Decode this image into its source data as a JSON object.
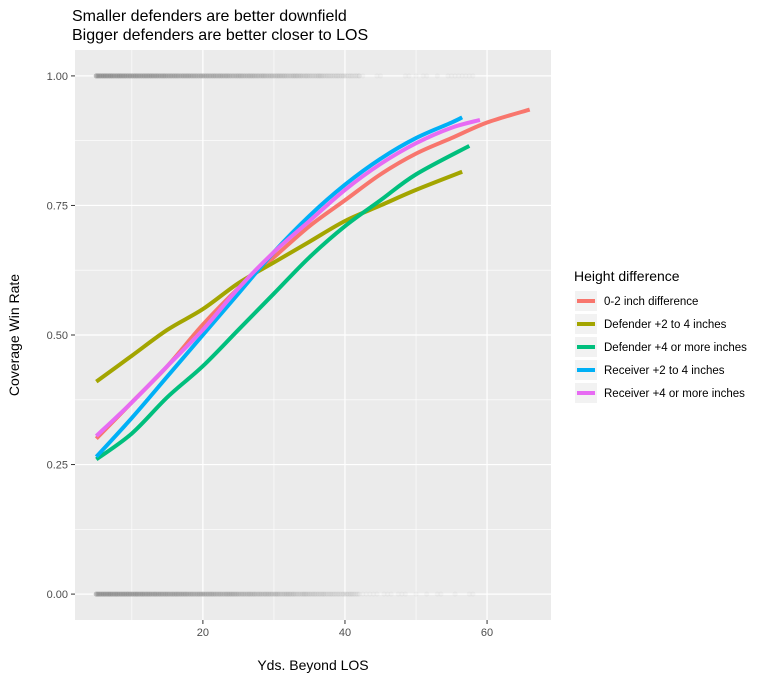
{
  "chart_data": {
    "type": "line",
    "title": "Smaller defenders are better downfield",
    "subtitle": "Bigger defenders are better closer to LOS",
    "xlabel": "Yds. Beyond LOS",
    "ylabel": "Coverage Win Rate",
    "xlim": [
      2,
      69
    ],
    "ylim": [
      -0.05,
      1.05
    ],
    "x_ticks": [
      20,
      40,
      60
    ],
    "y_ticks": [
      0.0,
      0.25,
      0.5,
      0.75,
      1.0
    ],
    "x_tick_labels": [
      "20",
      "40",
      "60"
    ],
    "y_tick_labels": [
      "0.00",
      "0.25",
      "0.50",
      "0.75",
      "1.00"
    ],
    "grid": true,
    "legend": {
      "title": "Height difference",
      "position": "right"
    },
    "series": [
      {
        "name": "0-2 inch difference",
        "color": "#F8766D",
        "x": [
          5,
          10,
          15,
          20,
          25,
          30,
          35,
          40,
          45,
          50,
          55,
          60,
          66
        ],
        "y": [
          0.3,
          0.37,
          0.44,
          0.52,
          0.59,
          0.65,
          0.71,
          0.76,
          0.81,
          0.85,
          0.88,
          0.91,
          0.935
        ]
      },
      {
        "name": "Defender +2 to 4 inches",
        "color": "#A3A500",
        "x": [
          5,
          10,
          15,
          20,
          25,
          30,
          35,
          40,
          45,
          50,
          56.5
        ],
        "y": [
          0.41,
          0.46,
          0.51,
          0.55,
          0.6,
          0.64,
          0.68,
          0.72,
          0.75,
          0.78,
          0.815
        ]
      },
      {
        "name": "Defender +4 or more inches",
        "color": "#00BF7D",
        "x": [
          5,
          10,
          15,
          20,
          25,
          30,
          35,
          40,
          45,
          50,
          57.5
        ],
        "y": [
          0.26,
          0.31,
          0.38,
          0.44,
          0.51,
          0.58,
          0.65,
          0.71,
          0.76,
          0.81,
          0.865
        ]
      },
      {
        "name": "Receiver +2 to 4 inches",
        "color": "#00B0F6",
        "x": [
          5,
          10,
          15,
          20,
          25,
          30,
          35,
          40,
          45,
          50,
          55,
          56.5
        ],
        "y": [
          0.265,
          0.34,
          0.42,
          0.5,
          0.58,
          0.66,
          0.73,
          0.79,
          0.84,
          0.88,
          0.91,
          0.92
        ]
      },
      {
        "name": "Receiver +4 or more inches",
        "color": "#E76BF3",
        "x": [
          5,
          10,
          15,
          20,
          25,
          30,
          35,
          40,
          45,
          50,
          55,
          59
        ],
        "y": [
          0.305,
          0.37,
          0.44,
          0.51,
          0.59,
          0.66,
          0.72,
          0.78,
          0.83,
          0.87,
          0.9,
          0.915
        ]
      }
    ],
    "raw_points": {
      "color": "#7f7f7f",
      "levels": [
        0,
        1
      ],
      "x_dense_range": [
        5,
        42
      ],
      "x_sparse_range": [
        42,
        58
      ]
    }
  }
}
